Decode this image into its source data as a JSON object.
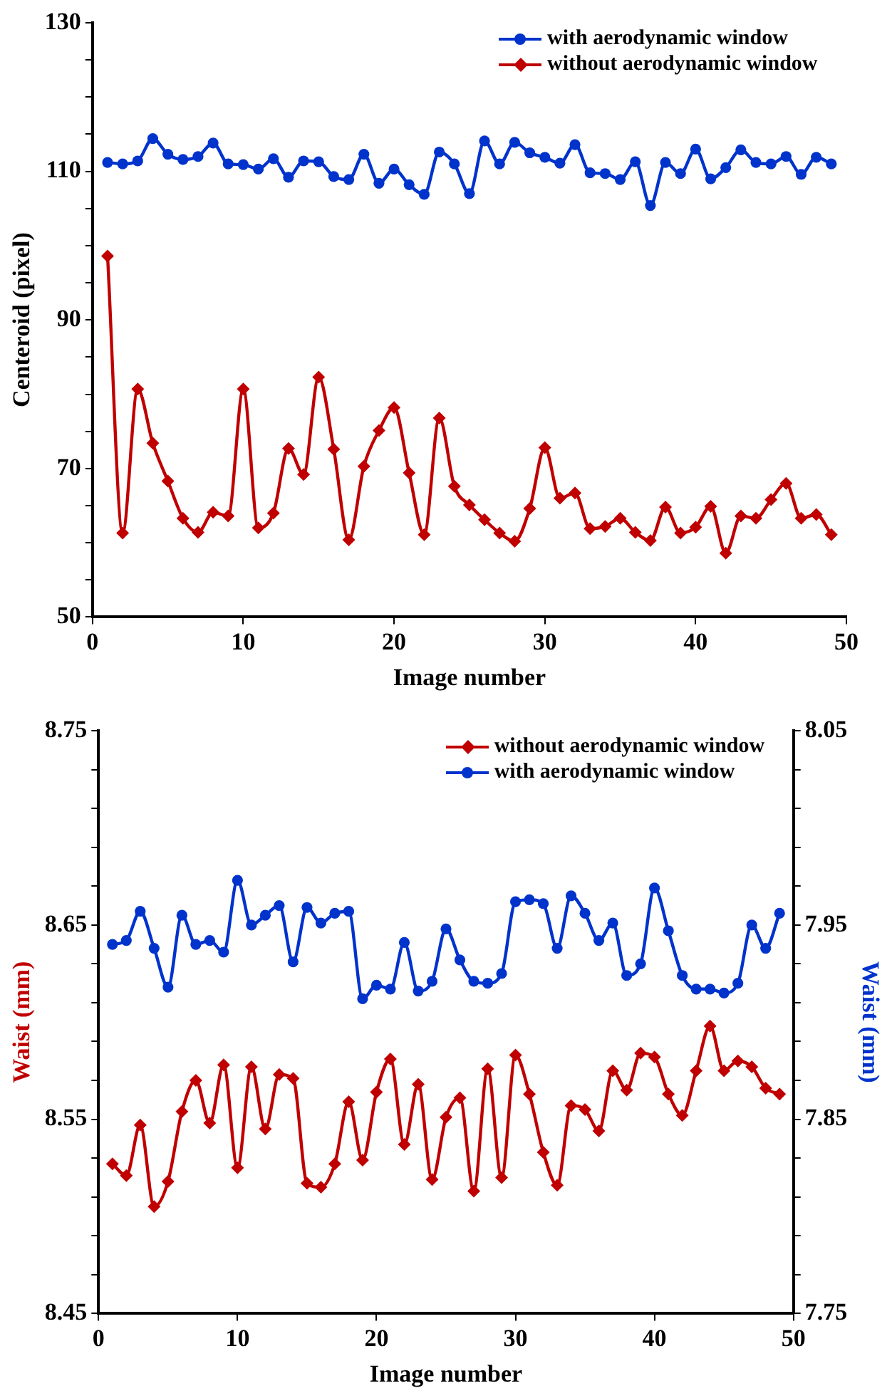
{
  "chart_data": [
    {
      "type": "line",
      "xlabel": "Image number",
      "ylabel": "Centeroid (pixel)",
      "legend": "top right",
      "x": [
        1,
        2,
        3,
        4,
        5,
        6,
        7,
        8,
        9,
        10,
        11,
        12,
        13,
        14,
        15,
        16,
        17,
        18,
        19,
        20,
        21,
        22,
        23,
        24,
        25,
        26,
        27,
        28,
        29,
        30,
        31,
        32,
        33,
        34,
        35,
        36,
        37,
        38,
        39,
        40,
        41,
        42,
        43,
        44,
        45,
        46,
        47,
        48,
        49
      ],
      "xlim": [
        0,
        50
      ],
      "xticks": [
        0,
        10,
        20,
        30,
        40,
        50
      ],
      "ylim": [
        50,
        130
      ],
      "yticks": [
        50,
        {
          "value": 55,
          "label": null
        },
        {
          "value": 60,
          "label": null
        },
        {
          "value": 65,
          "label": null
        },
        70,
        {
          "value": 75,
          "label": null
        },
        {
          "value": 80,
          "label": null
        },
        {
          "value": 85,
          "label": null
        },
        90,
        {
          "value": 95,
          "label": null
        },
        {
          "value": 100,
          "label": null
        },
        {
          "value": 105,
          "label": null
        },
        110,
        {
          "value": 115,
          "label": null
        },
        {
          "value": 120,
          "label": null
        },
        {
          "value": 125,
          "label": null
        },
        130
      ],
      "series": [
        {
          "name": "with aerodynamic window",
          "color": "#0033cc",
          "marker": "circle",
          "values": [
            111.2,
            111,
            111.4,
            114.4,
            112.3,
            111.6,
            112,
            113.8,
            111,
            110.9,
            110.3,
            111.7,
            109.2,
            111.4,
            111.3,
            109.3,
            108.9,
            112.3,
            108.4,
            110.3,
            108.2,
            106.9,
            112.6,
            111,
            107,
            114.1,
            111,
            113.9,
            112.5,
            111.9,
            111.1,
            113.6,
            109.8,
            109.7,
            108.9,
            111.3,
            105.4,
            111.2,
            109.7,
            113,
            109,
            110.5,
            112.9,
            111.2,
            111,
            112,
            109.6,
            111.9,
            111
          ]
        },
        {
          "name": "without aerodynamic window",
          "color": "#c00000",
          "marker": "diamond",
          "values": [
            98.6,
            61.3,
            80.7,
            73.4,
            68.3,
            63.3,
            61.4,
            64.1,
            63.6,
            80.7,
            62,
            64,
            72.7,
            69.2,
            82.3,
            72.6,
            60.4,
            70.3,
            75.1,
            78.2,
            69.4,
            61.1,
            76.8,
            67.6,
            65.1,
            63.1,
            61.3,
            60.2,
            64.6,
            72.8,
            66,
            66.7,
            61.9,
            62.2,
            63.3,
            61.4,
            60.3,
            64.8,
            61.3,
            62.1,
            64.9,
            58.6,
            63.6,
            63.3,
            65.8,
            68,
            63.3,
            63.8,
            61.1
          ]
        }
      ]
    },
    {
      "type": "line",
      "xlabel": "Image number",
      "ylabel": "Waist (mm)",
      "y2label": "Waist (mm)",
      "legend": "top right",
      "x": [
        1,
        2,
        3,
        4,
        5,
        6,
        7,
        8,
        9,
        10,
        11,
        12,
        13,
        14,
        15,
        16,
        17,
        18,
        19,
        20,
        21,
        22,
        23,
        24,
        25,
        26,
        27,
        28,
        29,
        30,
        31,
        32,
        33,
        34,
        35,
        36,
        37,
        38,
        39,
        40,
        41,
        42,
        43,
        44,
        45,
        46,
        47,
        48,
        49
      ],
      "xlim": [
        0,
        50
      ],
      "xticks": [
        0,
        10,
        20,
        30,
        40,
        50
      ],
      "ylim": [
        8.45,
        8.75
      ],
      "yticks": [
        8.45,
        {
          "value": 8.47,
          "label": null
        },
        {
          "value": 8.49,
          "label": null
        },
        {
          "value": 8.51,
          "label": null
        },
        {
          "value": 8.53,
          "label": null
        },
        8.55,
        {
          "value": 8.57,
          "label": null
        },
        {
          "value": 8.59,
          "label": null
        },
        {
          "value": 8.61,
          "label": null
        },
        {
          "value": 8.63,
          "label": null
        },
        8.65,
        {
          "value": 8.67,
          "label": null
        },
        {
          "value": 8.69,
          "label": null
        },
        {
          "value": 8.71,
          "label": null
        },
        {
          "value": 8.73,
          "label": null
        },
        8.75
      ],
      "y2lim": [
        7.75,
        8.05
      ],
      "y2ticks": [
        7.75,
        {
          "value": 7.77,
          "label": null
        },
        {
          "value": 7.79,
          "label": null
        },
        {
          "value": 7.81,
          "label": null
        },
        {
          "value": 7.83,
          "label": null
        },
        7.85,
        {
          "value": 7.87,
          "label": null
        },
        {
          "value": 7.89,
          "label": null
        },
        {
          "value": 7.91,
          "label": null
        },
        {
          "value": 7.93,
          "label": null
        },
        7.95,
        {
          "value": 7.97,
          "label": null
        },
        {
          "value": 7.99,
          "label": null
        },
        {
          "value": 8.01,
          "label": null
        },
        {
          "value": 8.03,
          "label": null
        },
        8.05
      ],
      "series": [
        {
          "name": "without aerodynamic window",
          "color": "#c00000",
          "marker": "diamond",
          "values": [
            8.527,
            8.521,
            8.547,
            8.505,
            8.518,
            8.554,
            8.57,
            8.548,
            8.578,
            8.525,
            8.577,
            8.545,
            8.573,
            8.571,
            8.517,
            8.515,
            8.527,
            8.559,
            8.529,
            8.564,
            8.581,
            8.537,
            8.568,
            8.519,
            8.551,
            8.561,
            8.513,
            8.576,
            8.52,
            8.583,
            8.563,
            8.533,
            8.516,
            8.557,
            8.555,
            8.544,
            8.575,
            8.565,
            8.584,
            8.582,
            8.563,
            8.552,
            8.575,
            8.598,
            8.575,
            8.58,
            8.577,
            8.566,
            8.563
          ]
        },
        {
          "name": "with aerodynamic window",
          "color": "#0033cc",
          "marker": "circle",
          "axis": "y2",
          "values": [
            7.94,
            7.942,
            7.957,
            7.938,
            7.918,
            7.955,
            7.94,
            7.942,
            7.936,
            7.973,
            7.95,
            7.955,
            7.96,
            7.931,
            7.959,
            7.951,
            7.956,
            7.957,
            7.912,
            7.919,
            7.917,
            7.941,
            7.916,
            7.921,
            7.948,
            7.932,
            7.921,
            7.92,
            7.925,
            7.962,
            7.963,
            7.961,
            7.938,
            7.965,
            7.956,
            7.942,
            7.951,
            7.924,
            7.93,
            7.969,
            7.947,
            7.924,
            7.917,
            7.917,
            7.915,
            7.92,
            7.95,
            7.938,
            7.956
          ]
        }
      ]
    }
  ]
}
